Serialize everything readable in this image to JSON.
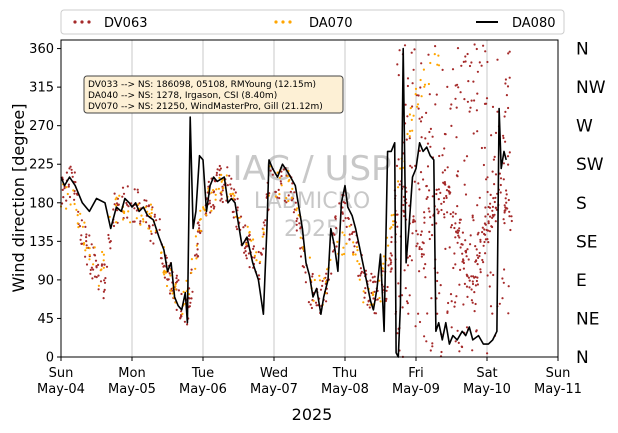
{
  "chart_data": {
    "type": "scatter",
    "xlabel": "2025",
    "ylabel": "Wind direction [degree]",
    "x_range": [
      "2025-05-04",
      "2025-05-11"
    ],
    "ylim": [
      0,
      370
    ],
    "y_ticks": [
      0,
      45,
      90,
      135,
      180,
      225,
      270,
      315,
      360
    ],
    "compass_labels": [
      "N",
      "NE",
      "E",
      "SE",
      "S",
      "SW",
      "W",
      "NW",
      "N"
    ],
    "grid": "vertical-at-days",
    "legend_placement": "top-outside",
    "x_ticks": [
      {
        "day": "Sun",
        "date": "May-04"
      },
      {
        "day": "Mon",
        "date": "May-05"
      },
      {
        "day": "Tue",
        "date": "May-06"
      },
      {
        "day": "Wed",
        "date": "May-07"
      },
      {
        "day": "Thu",
        "date": "May-08"
      },
      {
        "day": "Fri",
        "date": "May-09"
      },
      {
        "day": "Sat",
        "date": "May-10"
      },
      {
        "day": "Sun",
        "date": "May-11"
      }
    ],
    "info_box": [
      "DV033 --> NS: 186098, 05108, RMYoung (12.15m)",
      "DA040 --> NS: 1278, Irgason, CSI (8.40m)",
      "DV070 --> NS: 21250, WindMasterPro, Gill (21.12m)"
    ],
    "watermark": [
      "IAG / USP",
      "LABMICRO",
      "2025"
    ],
    "series": [
      {
        "name": "DV063",
        "style": "dotted",
        "color": "#a52a2a",
        "anchors": [
          [
            0,
            195
          ],
          [
            0.1,
            205
          ],
          [
            0.2,
            195
          ],
          [
            0.3,
            140
          ],
          [
            0.5,
            100
          ],
          [
            0.6,
            85
          ],
          [
            0.75,
            175
          ],
          [
            1.0,
            180
          ],
          [
            1.2,
            165
          ],
          [
            1.4,
            140
          ],
          [
            1.5,
            100
          ],
          [
            1.6,
            80
          ],
          [
            1.7,
            60
          ],
          [
            1.78,
            55
          ],
          [
            1.85,
            90
          ],
          [
            1.95,
            150
          ],
          [
            2.05,
            180
          ],
          [
            2.2,
            200
          ],
          [
            2.35,
            205
          ],
          [
            2.45,
            180
          ],
          [
            2.55,
            150
          ],
          [
            2.7,
            115
          ],
          [
            2.8,
            110
          ],
          [
            2.95,
            210
          ],
          [
            3.1,
            205
          ],
          [
            3.25,
            200
          ],
          [
            3.35,
            150
          ],
          [
            3.5,
            80
          ],
          [
            3.65,
            70
          ],
          [
            3.75,
            80
          ],
          [
            3.85,
            140
          ],
          [
            4.0,
            180
          ],
          [
            4.15,
            125
          ],
          [
            4.3,
            80
          ],
          [
            4.45,
            70
          ],
          [
            4.6,
            90
          ],
          [
            4.75,
            180
          ],
          [
            4.9,
            175
          ],
          [
            5.05,
            120
          ],
          [
            5.25,
            170
          ],
          [
            5.45,
            190
          ],
          [
            5.6,
            150
          ],
          [
            5.8,
            80
          ],
          [
            6.0,
            150
          ],
          [
            6.2,
            200
          ],
          [
            6.35,
            150
          ]
        ],
        "scatter_band": {
          "x_range": [
            4.7,
            6.35
          ],
          "y_range": [
            0,
            365
          ]
        }
      },
      {
        "name": "DA070",
        "style": "dotted",
        "color": "#ffa500",
        "anchors": [
          [
            0,
            185
          ],
          [
            0.2,
            180
          ],
          [
            0.35,
            135
          ],
          [
            0.55,
            95
          ],
          [
            0.7,
            170
          ],
          [
            1.0,
            175
          ],
          [
            1.3,
            160
          ],
          [
            1.5,
            95
          ],
          [
            1.7,
            55
          ],
          [
            1.85,
            100
          ],
          [
            2.0,
            175
          ],
          [
            2.2,
            195
          ],
          [
            2.4,
            195
          ],
          [
            2.6,
            140
          ],
          [
            2.8,
            115
          ],
          [
            2.95,
            205
          ],
          [
            3.2,
            200
          ],
          [
            3.4,
            150
          ],
          [
            3.55,
            80
          ],
          [
            3.7,
            75
          ],
          [
            3.85,
            130
          ],
          [
            4.1,
            140
          ],
          [
            4.3,
            60
          ],
          [
            4.5,
            80
          ],
          [
            4.7,
            180
          ],
          [
            4.9,
            270
          ],
          [
            5.1,
            320
          ],
          [
            5.25,
            345
          ],
          [
            5.35,
            350
          ]
        ]
      },
      {
        "name": "DA080",
        "style": "solid",
        "color": "#000000",
        "points": [
          [
            0.0,
            210
          ],
          [
            0.05,
            200
          ],
          [
            0.12,
            210
          ],
          [
            0.2,
            200
          ],
          [
            0.3,
            180
          ],
          [
            0.4,
            170
          ],
          [
            0.5,
            185
          ],
          [
            0.62,
            180
          ],
          [
            0.7,
            150
          ],
          [
            0.78,
            175
          ],
          [
            0.85,
            170
          ],
          [
            0.9,
            185
          ],
          [
            0.96,
            180
          ],
          [
            1.0,
            175
          ],
          [
            1.05,
            180
          ],
          [
            1.1,
            170
          ],
          [
            1.16,
            175
          ],
          [
            1.22,
            165
          ],
          [
            1.3,
            160
          ],
          [
            1.38,
            140
          ],
          [
            1.45,
            125
          ],
          [
            1.5,
            100
          ],
          [
            1.55,
            110
          ],
          [
            1.6,
            70
          ],
          [
            1.65,
            60
          ],
          [
            1.7,
            55
          ],
          [
            1.75,
            75
          ],
          [
            1.78,
            40
          ],
          [
            1.82,
            280
          ],
          [
            1.86,
            150
          ],
          [
            1.9,
            170
          ],
          [
            1.95,
            235
          ],
          [
            2.0,
            230
          ],
          [
            2.05,
            170
          ],
          [
            2.1,
            200
          ],
          [
            2.15,
            210
          ],
          [
            2.2,
            205
          ],
          [
            2.3,
            210
          ],
          [
            2.35,
            180
          ],
          [
            2.4,
            185
          ],
          [
            2.45,
            180
          ],
          [
            2.55,
            130
          ],
          [
            2.62,
            140
          ],
          [
            2.7,
            110
          ],
          [
            2.78,
            90
          ],
          [
            2.85,
            50
          ],
          [
            2.9,
            150
          ],
          [
            2.93,
            230
          ],
          [
            2.98,
            220
          ],
          [
            3.05,
            210
          ],
          [
            3.12,
            225
          ],
          [
            3.2,
            215
          ],
          [
            3.3,
            200
          ],
          [
            3.4,
            150
          ],
          [
            3.45,
            110
          ],
          [
            3.5,
            95
          ],
          [
            3.55,
            70
          ],
          [
            3.6,
            80
          ],
          [
            3.66,
            50
          ],
          [
            3.7,
            70
          ],
          [
            3.76,
            90
          ],
          [
            3.8,
            150
          ],
          [
            3.85,
            130
          ],
          [
            3.9,
            100
          ],
          [
            3.95,
            180
          ],
          [
            4.0,
            200
          ],
          [
            4.04,
            175
          ],
          [
            4.1,
            165
          ],
          [
            4.15,
            150
          ],
          [
            4.2,
            130
          ],
          [
            4.3,
            90
          ],
          [
            4.36,
            65
          ],
          [
            4.4,
            55
          ],
          [
            4.45,
            80
          ],
          [
            4.5,
            120
          ],
          [
            4.55,
            30
          ],
          [
            4.6,
            240
          ],
          [
            4.65,
            240
          ],
          [
            4.7,
            250
          ],
          [
            4.72,
            5
          ],
          [
            4.75,
            0
          ],
          [
            4.78,
            60
          ],
          [
            4.82,
            360
          ],
          [
            4.86,
            110
          ],
          [
            4.9,
            150
          ],
          [
            4.95,
            210
          ],
          [
            5.0,
            220
          ],
          [
            5.05,
            250
          ],
          [
            5.1,
            240
          ],
          [
            5.15,
            245
          ],
          [
            5.2,
            235
          ],
          [
            5.25,
            230
          ],
          [
            5.28,
            30
          ],
          [
            5.32,
            40
          ],
          [
            5.37,
            20
          ],
          [
            5.42,
            40
          ],
          [
            5.47,
            15
          ],
          [
            5.52,
            25
          ],
          [
            5.58,
            20
          ],
          [
            5.65,
            30
          ],
          [
            5.7,
            25
          ],
          [
            5.75,
            35
          ],
          [
            5.8,
            20
          ],
          [
            5.88,
            25
          ],
          [
            5.95,
            15
          ],
          [
            6.02,
            15
          ],
          [
            6.08,
            20
          ],
          [
            6.14,
            30
          ],
          [
            6.17,
            290
          ],
          [
            6.2,
            220
          ],
          [
            6.24,
            240
          ],
          [
            6.27,
            230
          ]
        ]
      }
    ]
  }
}
